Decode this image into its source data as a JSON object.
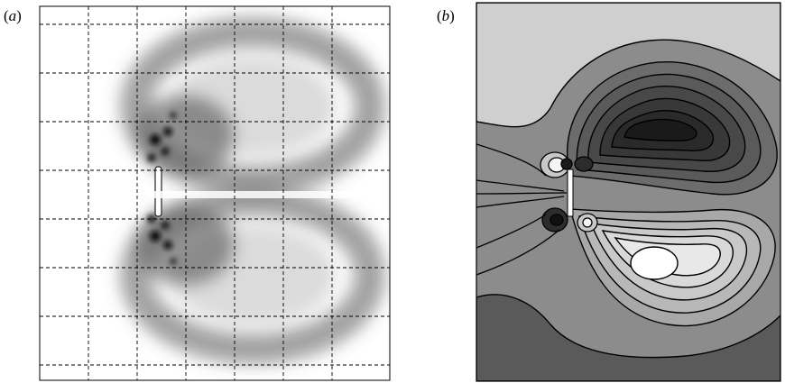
{
  "figure": {
    "panel_a": {
      "label_open": "(",
      "label_letter": "a",
      "label_close": ")"
    },
    "panel_b": {
      "label_open": "(",
      "label_letter": "b",
      "label_close": ")"
    }
  },
  "colors": {
    "panel_a_background": "#ffffff",
    "panel_a_vortex": "#3a3a3a",
    "panel_a_grid": "#000000",
    "panel_b_dark": "#1a1a1a",
    "panel_b_mid": "#8a8a8a",
    "panel_b_light": "#f0f0f0",
    "contour_line": "#000000"
  }
}
